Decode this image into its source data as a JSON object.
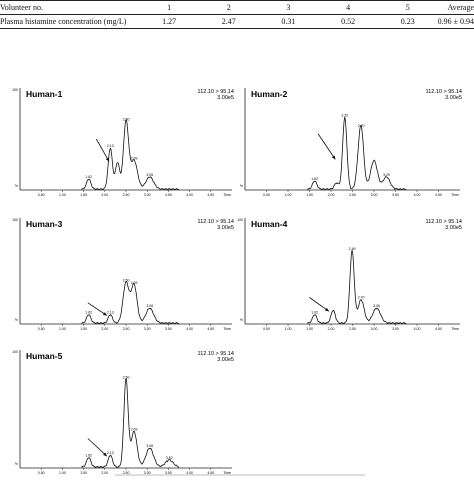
{
  "table": {
    "headers": [
      "Volunteer no.",
      "1",
      "2",
      "3",
      "4",
      "5",
      "Average"
    ],
    "row": [
      "Plasma histamine concentration (mg/L)",
      "1.27",
      "2.47",
      "0.31",
      "0.52",
      "0.23",
      "0.96 ± 0.94"
    ]
  },
  "chart_data": [
    {
      "type": "line",
      "label": "Human-1",
      "transition": "112.10 > 95.14",
      "scale": "3.00e5",
      "x_unit": "Time",
      "y_top": "100",
      "y_zero": "%",
      "xlim": [
        0,
        5.0
      ],
      "ylim": [
        0,
        100
      ],
      "xticks": [
        "0.50",
        "1.00",
        "1.50",
        "2.00",
        "2.50",
        "3.00",
        "3.50",
        "4.00",
        "4.50"
      ],
      "peaks": [
        {
          "t": 1.62,
          "h": 10,
          "w": 0.05,
          "label": "1.62"
        },
        {
          "t": 2.13,
          "h": 40,
          "w": 0.05,
          "label": "2.13"
        },
        {
          "t": 2.3,
          "h": 26,
          "w": 0.05,
          "label": ""
        },
        {
          "t": 2.5,
          "h": 66,
          "w": 0.06,
          "label": "2.50"
        },
        {
          "t": 2.69,
          "h": 28,
          "w": 0.08,
          "label": "2.69"
        },
        {
          "t": 3.06,
          "h": 12,
          "w": 0.09,
          "label": "3.06"
        }
      ],
      "arrow": {
        "from": [
          1.8,
          50
        ],
        "to": [
          2.1,
          28
        ]
      }
    },
    {
      "type": "line",
      "label": "Human-2",
      "transition": "112.10 > 95.14",
      "scale": "3.00e5",
      "x_unit": "Time",
      "y_top": "",
      "y_zero": "%",
      "xlim": [
        0,
        5.0
      ],
      "ylim": [
        0,
        100
      ],
      "xticks": [
        "0.50",
        "1.00",
        "1.50",
        "2.00",
        "2.50",
        "3.00",
        "3.50",
        "4.00",
        "4.50"
      ],
      "peaks": [
        {
          "t": 1.62,
          "h": 8,
          "w": 0.05,
          "label": "1.62"
        },
        {
          "t": 2.13,
          "h": 6,
          "w": 0.05,
          "label": ""
        },
        {
          "t": 2.32,
          "h": 70,
          "w": 0.05,
          "label": "2.32"
        },
        {
          "t": 2.62,
          "h": 8,
          "w": 0.05,
          "label": ""
        },
        {
          "t": 2.7,
          "h": 60,
          "w": 0.06,
          "label": "2.70"
        },
        {
          "t": 3.0,
          "h": 28,
          "w": 0.08,
          "label": ""
        },
        {
          "t": 3.29,
          "h": 12,
          "w": 0.08,
          "label": "3.29"
        }
      ],
      "arrow": {
        "from": [
          1.7,
          55
        ],
        "to": [
          2.1,
          30
        ]
      }
    },
    {
      "type": "line",
      "label": "Human-3",
      "transition": "112.10 > 95.14",
      "scale": "3.00e5",
      "x_unit": "Time",
      "y_top": "100",
      "y_zero": "%",
      "xlim": [
        0,
        5.0
      ],
      "ylim": [
        0,
        100
      ],
      "xticks": [
        "0.50",
        "1.00",
        "1.50",
        "2.00",
        "2.50",
        "3.00",
        "3.50",
        "4.00",
        "4.50"
      ],
      "peaks": [
        {
          "t": 1.62,
          "h": 8,
          "w": 0.05,
          "label": "1.62"
        },
        {
          "t": 2.13,
          "h": 8,
          "w": 0.05,
          "label": "2.13"
        },
        {
          "t": 2.5,
          "h": 38,
          "w": 0.07,
          "label": "2.50"
        },
        {
          "t": 2.69,
          "h": 36,
          "w": 0.07,
          "label": "2.69"
        },
        {
          "t": 3.06,
          "h": 14,
          "w": 0.09,
          "label": "3.06"
        }
      ],
      "arrow": {
        "from": [
          1.6,
          20
        ],
        "to": [
          2.05,
          8
        ]
      }
    },
    {
      "type": "line",
      "label": "Human-4",
      "transition": "112.10 > 95.14",
      "scale": "3.00e5",
      "x_unit": "Time",
      "y_top": "100",
      "y_zero": "%",
      "xlim": [
        0,
        5.0
      ],
      "ylim": [
        0,
        100
      ],
      "xticks": [
        "0.50",
        "1.00",
        "1.50",
        "2.00",
        "2.50",
        "3.00",
        "3.50",
        "4.00",
        "4.50"
      ],
      "peaks": [
        {
          "t": 1.62,
          "h": 8,
          "w": 0.05,
          "label": "1.62"
        },
        {
          "t": 2.05,
          "h": 12,
          "w": 0.05,
          "label": ""
        },
        {
          "t": 2.49,
          "h": 68,
          "w": 0.05,
          "label": "2.49"
        },
        {
          "t": 2.7,
          "h": 22,
          "w": 0.07,
          "label": "2.70"
        },
        {
          "t": 3.06,
          "h": 14,
          "w": 0.09,
          "label": "3.06"
        }
      ],
      "arrow": {
        "from": [
          1.5,
          25
        ],
        "to": [
          1.95,
          12
        ]
      }
    },
    {
      "type": "line",
      "label": "Human-5",
      "transition": "112.10 > 95.14",
      "scale": "3.00e5",
      "x_unit": "Time",
      "y_top": "100",
      "y_zero": "%",
      "xlim": [
        0,
        5.0
      ],
      "ylim": [
        0,
        100
      ],
      "xticks": [
        "0.50",
        "1.00",
        "1.50",
        "2.00",
        "2.50",
        "3.00",
        "3.50",
        "4.00",
        "4.50"
      ],
      "peaks": [
        {
          "t": 1.62,
          "h": 8,
          "w": 0.05,
          "label": "1.62"
        },
        {
          "t": 2.13,
          "h": 10,
          "w": 0.05,
          "label": "2.13"
        },
        {
          "t": 2.5,
          "h": 74,
          "w": 0.05,
          "label": "2.50"
        },
        {
          "t": 2.69,
          "h": 30,
          "w": 0.07,
          "label": "2.69"
        },
        {
          "t": 3.06,
          "h": 16,
          "w": 0.09,
          "label": "3.06"
        },
        {
          "t": 3.52,
          "h": 6,
          "w": 0.09,
          "label": "3.52"
        }
      ],
      "arrow": {
        "from": [
          1.6,
          25
        ],
        "to": [
          2.05,
          10
        ]
      }
    }
  ]
}
